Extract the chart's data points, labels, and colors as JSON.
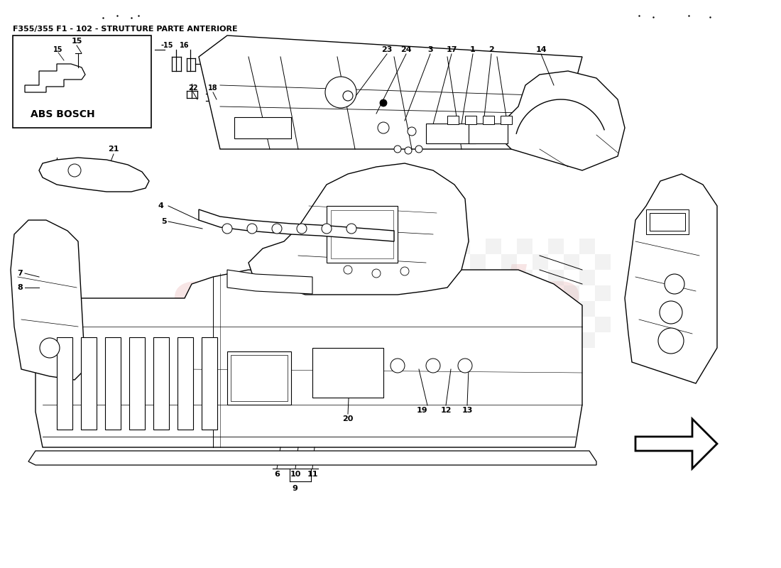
{
  "title": "F355/355 F1 - 102 - STRUTTURE PARTE ANTERIORE",
  "bg_color": "#f5f5f0",
  "fig_width": 11.0,
  "fig_height": 8.0,
  "dpi": 100
}
